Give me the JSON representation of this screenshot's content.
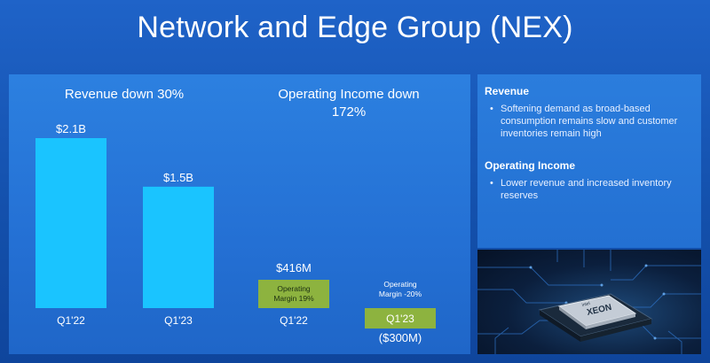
{
  "slide": {
    "title": "Network and Edge Group (NEX)"
  },
  "side_panel": {
    "sections": [
      {
        "title": "Revenue",
        "bullets": [
          "Softening demand as broad-based consumption remains slow and customer inventories remain high"
        ]
      },
      {
        "title": "Operating Income",
        "bullets": [
          "Lower revenue and increased inventory reserves"
        ]
      }
    ]
  },
  "chip_image": {
    "brand_text": "intel",
    "product_text": "XEON"
  },
  "colors": {
    "revenue_bar": "#1ac4ff",
    "operating_income_bar": "#8db33f",
    "background": "#1a5bbd",
    "panel": "#2776d9"
  },
  "chart_data": [
    {
      "type": "bar",
      "title": "Revenue down 30%",
      "categories": [
        "Q1'22",
        "Q1'23"
      ],
      "values": [
        2.1,
        1.5
      ],
      "data_labels": [
        "$2.1B",
        "$1.5B"
      ],
      "unit": "$B",
      "ylim": [
        0,
        2.1
      ],
      "grid": false
    },
    {
      "type": "bar",
      "title": "Operating Income down 172%",
      "categories": [
        "Q1'22",
        "Q1'23"
      ],
      "values": [
        416,
        -300
      ],
      "data_labels": [
        "$416M",
        "($300M)"
      ],
      "annotations": [
        "Operating Margin 19%",
        "Operating Margin -20%"
      ],
      "unit": "$M",
      "ylim": [
        -300,
        416
      ],
      "grid": false
    }
  ]
}
